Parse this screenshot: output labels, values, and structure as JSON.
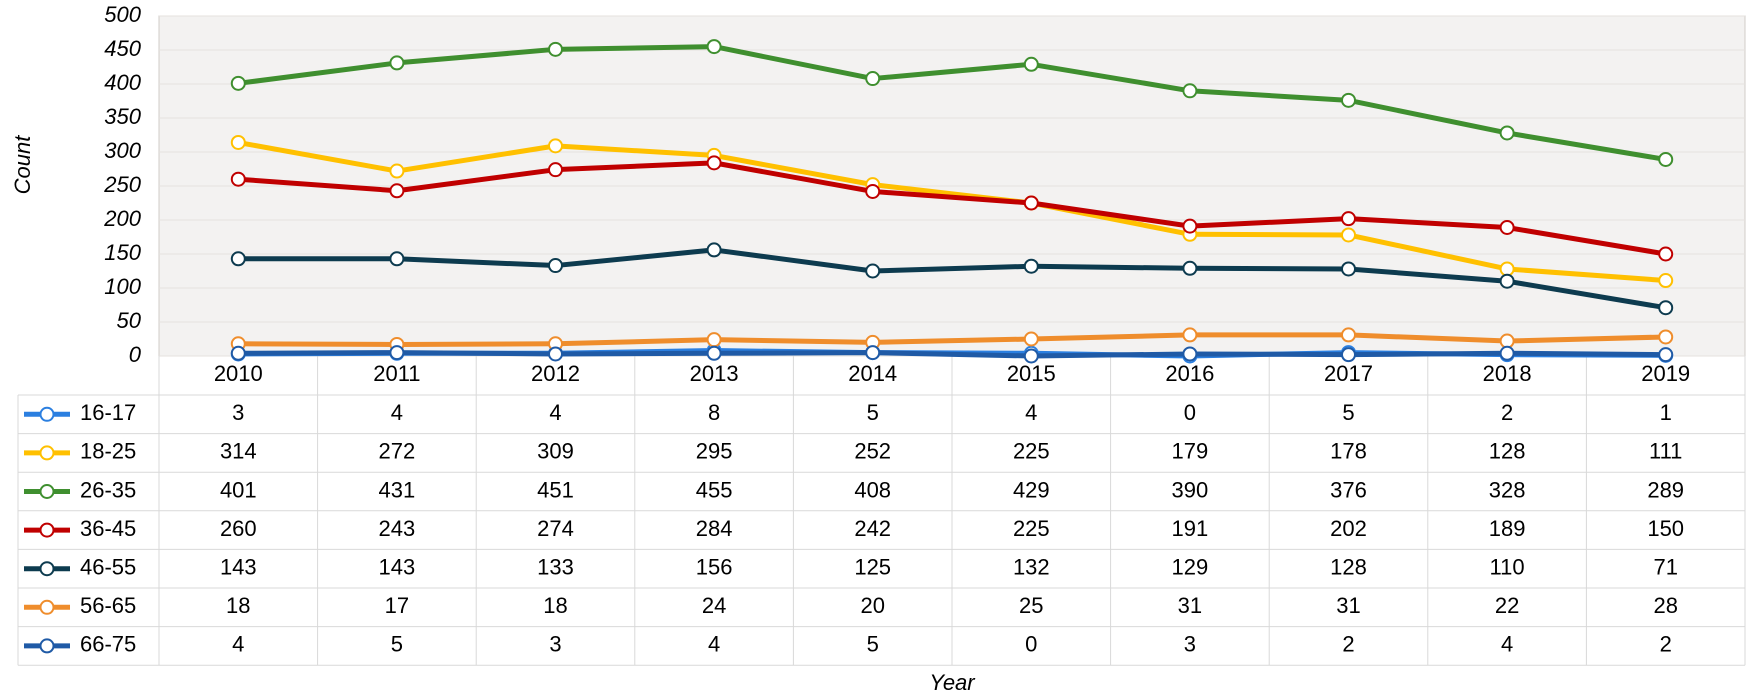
{
  "chart_data": {
    "type": "line",
    "x_label": "Year",
    "y_label": "Count",
    "categories": [
      "2010",
      "2011",
      "2012",
      "2013",
      "2014",
      "2015",
      "2016",
      "2017",
      "2018",
      "2019"
    ],
    "series": [
      {
        "name": "16-17",
        "color": "#2b7fe0",
        "values": [
          3,
          4,
          4,
          8,
          5,
          4,
          0,
          5,
          2,
          1
        ]
      },
      {
        "name": "18-25",
        "color": "#ffc000",
        "values": [
          314,
          272,
          309,
          295,
          252,
          225,
          179,
          178,
          128,
          111
        ]
      },
      {
        "name": "26-35",
        "color": "#3f8f2f",
        "values": [
          401,
          431,
          451,
          455,
          408,
          429,
          390,
          376,
          328,
          289
        ]
      },
      {
        "name": "36-45",
        "color": "#c00000",
        "values": [
          260,
          243,
          274,
          284,
          242,
          225,
          191,
          202,
          189,
          150
        ]
      },
      {
        "name": "46-55",
        "color": "#0d3b4f",
        "values": [
          143,
          143,
          133,
          156,
          125,
          132,
          129,
          128,
          110,
          71
        ]
      },
      {
        "name": "56-65",
        "color": "#ef8d2c",
        "values": [
          18,
          17,
          18,
          24,
          20,
          25,
          31,
          31,
          22,
          28
        ]
      },
      {
        "name": "66-75",
        "color": "#1f5aa6",
        "values": [
          4,
          5,
          3,
          4,
          5,
          0,
          3,
          2,
          4,
          2
        ]
      }
    ],
    "ylim": [
      0,
      500
    ],
    "yticks": [
      0,
      50,
      100,
      150,
      200,
      250,
      300,
      350,
      400,
      450,
      500
    ],
    "grid": true
  }
}
